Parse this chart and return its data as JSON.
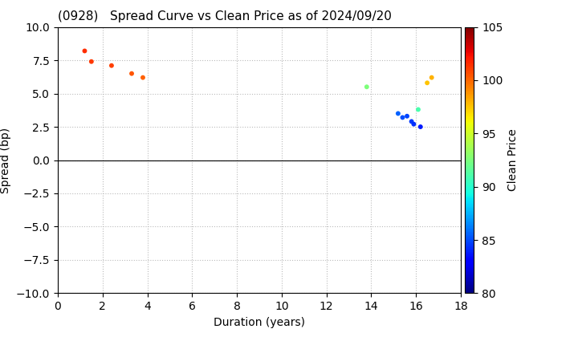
{
  "title": "(0928)   Spread Curve vs Clean Price as of 2024/09/20",
  "xlabel": "Duration (years)",
  "ylabel": "Spread (bp)",
  "xlim": [
    0,
    18
  ],
  "ylim": [
    -10,
    10
  ],
  "xticks": [
    0,
    2,
    4,
    6,
    8,
    10,
    12,
    14,
    16,
    18
  ],
  "yticks": [
    -10.0,
    -7.5,
    -5.0,
    -2.5,
    0.0,
    2.5,
    5.0,
    7.5,
    10.0
  ],
  "colorbar_label": "Clean Price",
  "colorbar_vmin": 80,
  "colorbar_vmax": 105,
  "colorbar_ticks": [
    80,
    85,
    90,
    95,
    100,
    105
  ],
  "points": [
    {
      "duration": 1.2,
      "spread": 8.2,
      "price": 101.5
    },
    {
      "duration": 1.5,
      "spread": 7.4,
      "price": 101.2
    },
    {
      "duration": 2.4,
      "spread": 7.1,
      "price": 101.0
    },
    {
      "duration": 3.3,
      "spread": 6.5,
      "price": 100.5
    },
    {
      "duration": 3.8,
      "spread": 6.2,
      "price": 100.2
    },
    {
      "duration": 13.8,
      "spread": 5.5,
      "price": 92.5
    },
    {
      "duration": 15.2,
      "spread": 3.5,
      "price": 85.5
    },
    {
      "duration": 15.4,
      "spread": 3.2,
      "price": 85.0
    },
    {
      "duration": 15.6,
      "spread": 3.3,
      "price": 84.8
    },
    {
      "duration": 15.8,
      "spread": 2.9,
      "price": 84.5
    },
    {
      "duration": 15.9,
      "spread": 2.7,
      "price": 84.2
    },
    {
      "duration": 16.2,
      "spread": 2.5,
      "price": 83.8
    },
    {
      "duration": 16.1,
      "spread": 3.8,
      "price": 91.0
    },
    {
      "duration": 16.5,
      "spread": 5.8,
      "price": 97.5
    },
    {
      "duration": 16.7,
      "spread": 6.2,
      "price": 98.0
    }
  ],
  "background_color": "#ffffff",
  "grid_color": "#bbbbbb",
  "title_fontsize": 11,
  "axis_fontsize": 10,
  "marker_size": 18
}
